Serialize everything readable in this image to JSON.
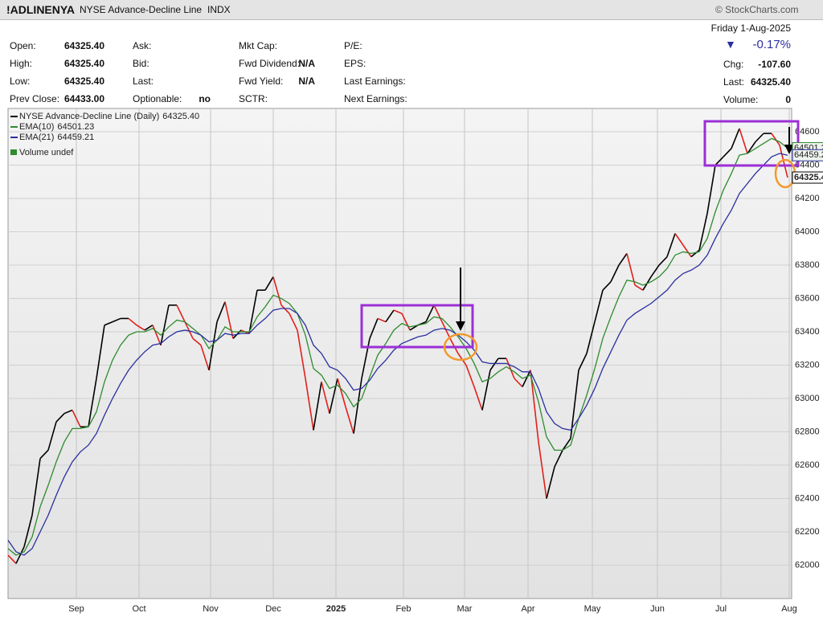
{
  "header": {
    "symbol": "!ADLINENYA",
    "name": "NYSE Advance-Decline Line",
    "exchange": "INDX",
    "source": "© StockCharts.com",
    "stats": [
      [
        "Open:",
        "64325.40"
      ],
      [
        "High:",
        "64325.40"
      ],
      [
        "Low:",
        "64325.40"
      ],
      [
        "Prev Close:",
        "64433.00"
      ],
      [
        "Ask:",
        ""
      ],
      [
        "Bid:",
        ""
      ],
      [
        "Last:",
        ""
      ],
      [
        "Optionable:",
        "no"
      ],
      [
        "Mkt Cap:",
        ""
      ],
      [
        "Fwd Dividend:",
        "N/A"
      ],
      [
        "Fwd Yield:",
        "N/A"
      ],
      [
        "SCTR:",
        ""
      ],
      [
        "P/E:",
        ""
      ],
      [
        "EPS:",
        ""
      ],
      [
        "Last Earnings:",
        ""
      ],
      [
        "Next Earnings:",
        ""
      ]
    ],
    "date": "Friday  1-Aug-2025",
    "pct_change": "-0.17%",
    "chg_label": "Chg:",
    "chg": "-107.60",
    "last_label": "Last:",
    "last": "64325.40",
    "volume_label": "Volume:",
    "volume": "0"
  },
  "chart_data": {
    "type": "line",
    "volume_label": "Volume undef",
    "ylim": [
      61800,
      64740
    ],
    "yticks": [
      62000,
      62200,
      62400,
      62600,
      62800,
      63000,
      63200,
      63400,
      63600,
      63800,
      64000,
      64200,
      64400,
      64600
    ],
    "xlim": [
      0,
      97.5
    ],
    "xticks": [
      {
        "value": 8.5,
        "label": "Sep"
      },
      {
        "value": 16.3,
        "label": "Oct"
      },
      {
        "value": 25.2,
        "label": "Nov"
      },
      {
        "value": 33,
        "label": "Dec"
      },
      {
        "value": 40.8,
        "label": "2025"
      },
      {
        "value": 49.2,
        "label": "Feb"
      },
      {
        "value": 56.8,
        "label": "Mar"
      },
      {
        "value": 64.7,
        "label": "Apr"
      },
      {
        "value": 72.7,
        "label": "May"
      },
      {
        "value": 80.8,
        "label": "Jun"
      },
      {
        "value": 88.7,
        "label": "Jul"
      },
      {
        "value": 97.2,
        "label": "Aug"
      }
    ],
    "grid": true,
    "up_color": "#000000",
    "down_color": "#e0201b",
    "series": [
      {
        "name": "NYSE Advance-Decline Line (Daily)",
        "last_label": "64325.40",
        "color": "#000000",
        "values": [
          62060,
          62010,
          62110,
          62300,
          62640,
          62690,
          62860,
          62910,
          62930,
          62830,
          62830,
          63120,
          63440,
          63460,
          63480,
          63480,
          63440,
          63410,
          63440,
          63320,
          63560,
          63560,
          63460,
          63360,
          63320,
          63170,
          63460,
          63580,
          63360,
          63410,
          63390,
          63650,
          63650,
          63730,
          63560,
          63510,
          63410,
          63120,
          62810,
          63100,
          62910,
          63120,
          62950,
          62790,
          63120,
          63360,
          63480,
          63460,
          63530,
          63510,
          63410,
          63440,
          63460,
          63560,
          63460,
          63360,
          63270,
          63200,
          63070,
          62930,
          63170,
          63240,
          63240,
          63120,
          63070,
          63170,
          62740,
          62400,
          62590,
          62690,
          62760,
          63170,
          63270,
          63460,
          63650,
          63700,
          63800,
          63870,
          63680,
          63650,
          63730,
          63800,
          63850,
          63990,
          63920,
          63850,
          63890,
          64110,
          64400,
          64450,
          64500,
          64620,
          64470,
          64540,
          64590,
          64590,
          64520,
          64325.4
        ]
      },
      {
        "name": "EMA(10)",
        "last_label": "64501.23",
        "color": "#2e8b2e",
        "values": [
          62100,
          62060,
          62080,
          62170,
          62350,
          62480,
          62620,
          62740,
          62820,
          62820,
          62830,
          62920,
          63100,
          63230,
          63320,
          63380,
          63400,
          63400,
          63420,
          63380,
          63430,
          63470,
          63460,
          63420,
          63380,
          63300,
          63350,
          63430,
          63400,
          63400,
          63400,
          63490,
          63550,
          63620,
          63600,
          63570,
          63510,
          63380,
          63180,
          63140,
          63060,
          63080,
          63030,
          62950,
          63000,
          63130,
          63260,
          63330,
          63410,
          63450,
          63430,
          63440,
          63450,
          63490,
          63480,
          63430,
          63370,
          63300,
          63210,
          63100,
          63120,
          63160,
          63190,
          63160,
          63120,
          63140,
          62980,
          62770,
          62690,
          62690,
          62720,
          62880,
          63020,
          63180,
          63360,
          63490,
          63610,
          63710,
          63700,
          63680,
          63700,
          63730,
          63780,
          63860,
          63880,
          63870,
          63880,
          63960,
          64120,
          64250,
          64350,
          64460,
          64470,
          64500,
          64530,
          64560,
          64540,
          64501.23
        ]
      },
      {
        "name": "EMA(21)",
        "last_label": "64459.21",
        "color": "#2b2f9e",
        "values": [
          62150,
          62080,
          62060,
          62100,
          62200,
          62300,
          62420,
          62530,
          62620,
          62680,
          62720,
          62790,
          62900,
          63000,
          63090,
          63170,
          63230,
          63280,
          63320,
          63330,
          63370,
          63400,
          63410,
          63400,
          63380,
          63340,
          63350,
          63390,
          63380,
          63390,
          63390,
          63440,
          63480,
          63530,
          63540,
          63540,
          63510,
          63440,
          63320,
          63270,
          63190,
          63170,
          63120,
          63050,
          63060,
          63110,
          63180,
          63230,
          63290,
          63330,
          63350,
          63370,
          63380,
          63410,
          63420,
          63410,
          63380,
          63340,
          63290,
          63220,
          63210,
          63210,
          63210,
          63190,
          63160,
          63160,
          63060,
          62920,
          62850,
          62820,
          62810,
          62880,
          62960,
          63060,
          63180,
          63280,
          63380,
          63470,
          63510,
          63540,
          63570,
          63610,
          63650,
          63710,
          63750,
          63770,
          63800,
          63860,
          63960,
          64050,
          64130,
          64230,
          64290,
          64350,
          64400,
          64450,
          64470,
          64459.21
        ]
      }
    ]
  }
}
